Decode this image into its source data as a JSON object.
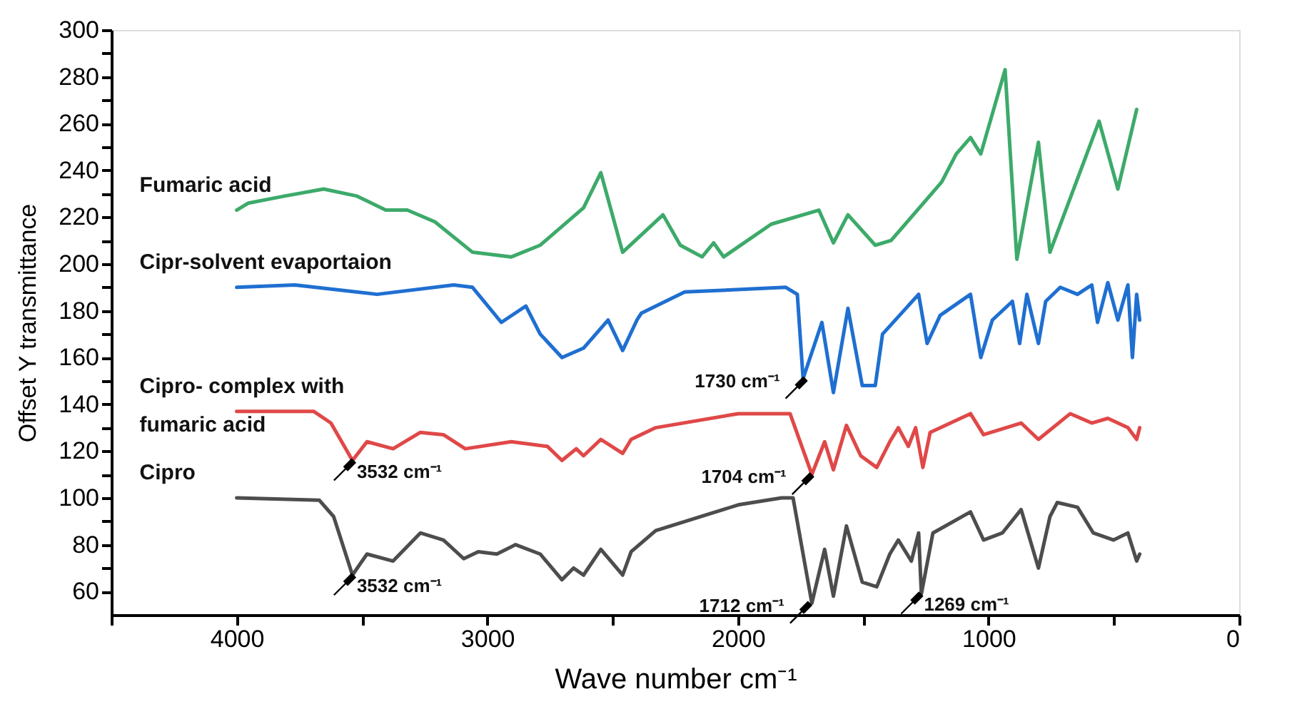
{
  "chart_data": {
    "type": "line",
    "xlabel": "Wave number cm⁻¹",
    "ylabel": "Offset Y transmittance",
    "xlim": [
      4500,
      0
    ],
    "ylim": [
      50,
      300
    ],
    "xticks": [
      {
        "value": 4500,
        "label": null
      },
      4000,
      {
        "value": 3500,
        "label": null
      },
      3000,
      {
        "value": 2500,
        "label": null
      },
      2000,
      {
        "value": 1500,
        "label": null
      },
      1000,
      {
        "value": 500,
        "label": null
      },
      0
    ],
    "yticks": [
      60,
      {
        "value": 70,
        "label": null
      },
      80,
      {
        "value": 90,
        "label": null
      },
      100,
      {
        "value": 110,
        "label": null
      },
      120,
      {
        "value": 130,
        "label": null
      },
      140,
      {
        "value": 150,
        "label": null
      },
      160,
      {
        "value": 170,
        "label": null
      },
      180,
      {
        "value": 190,
        "label": null
      },
      200,
      {
        "value": 210,
        "label": null
      },
      220,
      {
        "value": 230,
        "label": null
      },
      240,
      {
        "value": 250,
        "label": null
      },
      260,
      {
        "value": 270,
        "label": null
      },
      280,
      {
        "value": 290,
        "label": null
      },
      300
    ],
    "grid": false,
    "marker": "none",
    "line_style": "solid",
    "series": [
      {
        "name": "Fumaric acid",
        "color": "#3daa6a",
        "x": [
          4000,
          3953,
          3809,
          3653,
          3520,
          3405,
          3319,
          3209,
          3059,
          2904,
          2789,
          2616,
          2547,
          2460,
          2299,
          2230,
          2143,
          2097,
          2057,
          1867,
          1677,
          1619,
          1561,
          1452,
          1389,
          1187,
          1129,
          1072,
          1031,
          934,
          887,
          801,
          755,
          559,
          484,
          409
        ],
        "values": [
          223,
          226,
          229,
          232,
          229,
          223,
          223,
          218,
          205,
          203,
          208,
          224,
          239,
          205,
          221,
          208,
          203,
          209,
          203,
          217,
          223,
          209,
          221,
          208,
          210,
          235,
          247,
          254,
          247,
          283,
          202,
          252,
          205,
          261,
          232,
          266
        ]
      },
      {
        "name": "Cipr-solvent evaportaion",
        "color": "#1f6fd1",
        "x": [
          4000,
          3768,
          3440,
          3134,
          3059,
          2944,
          2846,
          2789,
          2702,
          2616,
          2518,
          2460,
          2403,
          2385,
          2212,
          1809,
          1763,
          1740,
          1665,
          1619,
          1561,
          1504,
          1452,
          1423,
          1279,
          1245,
          1193,
          1072,
          1031,
          985,
          905,
          876,
          847,
          801,
          772,
          714,
          645,
          588,
          565,
          524,
          484,
          444,
          426,
          409,
          397
        ],
        "values": [
          190,
          191,
          187,
          191,
          190,
          175,
          182,
          170,
          160,
          164,
          176,
          163,
          176,
          179,
          188,
          190,
          187,
          151,
          175,
          145,
          181,
          148,
          148,
          170,
          187,
          166,
          178,
          187,
          160,
          176,
          184,
          166,
          187,
          166,
          184,
          190,
          187,
          191,
          175,
          192,
          176,
          191,
          160,
          187,
          176
        ]
      },
      {
        "name": "Cipro- complex with fumaric acid",
        "color": "#e04848",
        "x": [
          4000,
          3693,
          3624,
          3538,
          3480,
          3376,
          3267,
          3175,
          3088,
          2904,
          2760,
          2702,
          2645,
          2616,
          2547,
          2460,
          2426,
          2328,
          1999,
          1792,
          1705,
          1654,
          1619,
          1567,
          1510,
          1446,
          1394,
          1360,
          1320,
          1291,
          1262,
          1233,
          1072,
          1020,
          870,
          801,
          674,
          588,
          524,
          444,
          409,
          397
        ],
        "values": [
          137,
          137,
          132,
          116,
          124,
          121,
          128,
          127,
          121,
          124,
          122,
          116,
          121,
          118,
          125,
          119,
          125,
          130,
          136,
          136,
          110,
          124,
          112,
          131,
          118,
          113,
          124,
          130,
          122,
          130,
          113,
          128,
          136,
          127,
          132,
          125,
          136,
          132,
          134,
          130,
          125,
          130
        ]
      },
      {
        "name": "Cipro",
        "color": "#4d4d4d",
        "x": [
          4000,
          3670,
          3613,
          3538,
          3480,
          3376,
          3267,
          3175,
          3094,
          3036,
          2962,
          2887,
          2789,
          2702,
          2656,
          2616,
          2547,
          2460,
          2426,
          2328,
          1999,
          1826,
          1780,
          1705,
          1654,
          1619,
          1567,
          1504,
          1446,
          1394,
          1360,
          1308,
          1279,
          1268,
          1222,
          1072,
          1020,
          945,
          870,
          801,
          755,
          726,
          645,
          582,
          501,
          444,
          409,
          397
        ],
        "values": [
          100,
          99,
          92,
          67,
          76,
          73,
          85,
          82,
          74,
          77,
          76,
          80,
          76,
          65,
          70,
          67,
          78,
          67,
          77,
          86,
          97,
          100,
          100,
          55,
          78,
          58,
          88,
          64,
          62,
          76,
          82,
          73,
          85,
          59,
          85,
          94,
          82,
          85,
          95,
          70,
          92,
          98,
          96,
          85,
          82,
          85,
          73,
          76
        ]
      }
    ],
    "annotations": [
      {
        "text": "3532 cm⁻¹",
        "x": 3532,
        "y": 116
      },
      {
        "text": "3532 cm⁻¹",
        "x": 3532,
        "y": 67
      },
      {
        "text": "1730 cm⁻¹",
        "x": 1730,
        "y": 151
      },
      {
        "text": "1704 cm⁻¹",
        "x": 1704,
        "y": 110
      },
      {
        "text": "1712 cm⁻¹",
        "x": 1712,
        "y": 55
      },
      {
        "text": "1269 cm⁻¹",
        "x": 1269,
        "y": 59
      }
    ]
  }
}
